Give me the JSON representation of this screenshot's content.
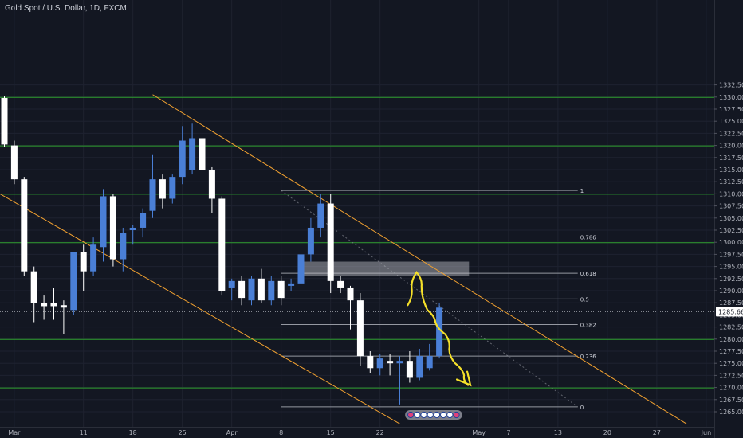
{
  "header": {
    "title": "Gold Spot / U.S. Dollar, 1D, FXCM"
  },
  "colors": {
    "background": "#131722",
    "bull": "#4a7fd6",
    "bear": "#ffffff",
    "support_line": "#2e9e2e",
    "channel": "#f0a030",
    "projection": "#f5e02a",
    "fib_line": "#9598a1",
    "zone": "#c0c3ca"
  },
  "chart_data": {
    "type": "candlestick",
    "title": "Gold Spot / U.S. Dollar, 1D, FXCM",
    "ylim": [
      1263.5,
      1333.5
    ],
    "y_ticks": [
      "1332.50",
      "1330.00",
      "1327.50",
      "1325.00",
      "1322.50",
      "1320.00",
      "1317.50",
      "1315.00",
      "1312.50",
      "1310.00",
      "1307.50",
      "1305.00",
      "1302.50",
      "1300.00",
      "1297.50",
      "1295.00",
      "1292.50",
      "1290.00",
      "1287.50",
      "1285.00",
      "1282.50",
      "1280.00",
      "1277.50",
      "1275.00",
      "1272.50",
      "1270.00",
      "1267.50",
      "1265.00"
    ],
    "x_ticks": [
      {
        "label": "Mar",
        "index": 1
      },
      {
        "label": "11",
        "index": 8
      },
      {
        "label": "18",
        "index": 13
      },
      {
        "label": "25",
        "index": 18
      },
      {
        "label": "Apr",
        "index": 23
      },
      {
        "label": "8",
        "index": 28
      },
      {
        "label": "15",
        "index": 33
      },
      {
        "label": "22",
        "index": 38
      },
      {
        "label": "May",
        "index": 48
      },
      {
        "label": "7",
        "index": 51
      },
      {
        "label": "13",
        "index": 56
      },
      {
        "label": "20",
        "index": 61
      },
      {
        "label": "27",
        "index": 66
      },
      {
        "label": "Jun",
        "index": 71
      }
    ],
    "candles": [
      {
        "o": 1329.8,
        "h": 1330.2,
        "l": 1319.6,
        "c": 1320.2
      },
      {
        "o": 1320.0,
        "h": 1321.0,
        "l": 1312.0,
        "c": 1313.0
      },
      {
        "o": 1313.0,
        "h": 1313.5,
        "l": 1293.0,
        "c": 1294.0
      },
      {
        "o": 1294.0,
        "h": 1295.0,
        "l": 1283.5,
        "c": 1287.5
      },
      {
        "o": 1287.5,
        "h": 1289.0,
        "l": 1284.0,
        "c": 1286.8
      },
      {
        "o": 1287.5,
        "h": 1290.5,
        "l": 1284.0,
        "c": 1286.8
      },
      {
        "o": 1287.0,
        "h": 1288.0,
        "l": 1281.0,
        "c": 1286.5
      },
      {
        "o": 1286.0,
        "h": 1298.0,
        "l": 1285.0,
        "c": 1298.0
      },
      {
        "o": 1298.0,
        "h": 1299.5,
        "l": 1290.0,
        "c": 1294.0
      },
      {
        "o": 1294.0,
        "h": 1301.0,
        "l": 1293.0,
        "c": 1299.5
      },
      {
        "o": 1299.0,
        "h": 1311.0,
        "l": 1296.0,
        "c": 1309.5
      },
      {
        "o": 1309.5,
        "h": 1310.0,
        "l": 1295.0,
        "c": 1296.5
      },
      {
        "o": 1296.5,
        "h": 1303.0,
        "l": 1294.0,
        "c": 1302.0
      },
      {
        "o": 1302.5,
        "h": 1303.5,
        "l": 1299.5,
        "c": 1303.0
      },
      {
        "o": 1303.0,
        "h": 1307.0,
        "l": 1301.0,
        "c": 1306.0
      },
      {
        "o": 1306.5,
        "h": 1318.0,
        "l": 1305.0,
        "c": 1313.0
      },
      {
        "o": 1313.0,
        "h": 1314.0,
        "l": 1307.0,
        "c": 1309.0
      },
      {
        "o": 1309.0,
        "h": 1314.0,
        "l": 1308.0,
        "c": 1313.5
      },
      {
        "o": 1313.5,
        "h": 1324.0,
        "l": 1312.0,
        "c": 1321.0
      },
      {
        "o": 1315.0,
        "h": 1324.5,
        "l": 1314.0,
        "c": 1321.5
      },
      {
        "o": 1321.5,
        "h": 1322.0,
        "l": 1314.0,
        "c": 1315.0
      },
      {
        "o": 1315.0,
        "h": 1315.5,
        "l": 1306.0,
        "c": 1309.0
      },
      {
        "o": 1309.0,
        "h": 1309.5,
        "l": 1289.0,
        "c": 1290.0
      },
      {
        "o": 1290.5,
        "h": 1292.5,
        "l": 1288.0,
        "c": 1292.0
      },
      {
        "o": 1292.0,
        "h": 1293.0,
        "l": 1287.0,
        "c": 1288.5
      },
      {
        "o": 1288.0,
        "h": 1293.0,
        "l": 1287.0,
        "c": 1292.5
      },
      {
        "o": 1292.5,
        "h": 1294.5,
        "l": 1287.5,
        "c": 1288.0
      },
      {
        "o": 1288.0,
        "h": 1293.0,
        "l": 1287.0,
        "c": 1292.0
      },
      {
        "o": 1292.0,
        "h": 1293.0,
        "l": 1287.0,
        "c": 1288.5
      },
      {
        "o": 1291.0,
        "h": 1292.5,
        "l": 1290.0,
        "c": 1291.5
      },
      {
        "o": 1291.5,
        "h": 1298.0,
        "l": 1291.0,
        "c": 1297.5
      },
      {
        "o": 1297.5,
        "h": 1305.0,
        "l": 1296.0,
        "c": 1303.0
      },
      {
        "o": 1303.0,
        "h": 1310.0,
        "l": 1301.0,
        "c": 1308.0
      },
      {
        "o": 1308.0,
        "h": 1310.0,
        "l": 1289.5,
        "c": 1292.0
      },
      {
        "o": 1292.0,
        "h": 1293.0,
        "l": 1289.5,
        "c": 1290.5
      },
      {
        "o": 1290.5,
        "h": 1291.0,
        "l": 1282.0,
        "c": 1288.0
      },
      {
        "o": 1288.0,
        "h": 1289.5,
        "l": 1274.5,
        "c": 1276.5
      },
      {
        "o": 1276.5,
        "h": 1277.5,
        "l": 1273.0,
        "c": 1274.0
      },
      {
        "o": 1274.0,
        "h": 1277.0,
        "l": 1272.5,
        "c": 1276.0
      },
      {
        "o": 1275.5,
        "h": 1277.0,
        "l": 1272.5,
        "c": 1275.0
      },
      {
        "o": 1275.0,
        "h": 1276.5,
        "l": 1266.5,
        "c": 1275.5
      },
      {
        "o": 1275.5,
        "h": 1277.5,
        "l": 1271.0,
        "c": 1272.0
      },
      {
        "o": 1272.0,
        "h": 1278.0,
        "l": 1271.5,
        "c": 1276.5
      },
      {
        "o": 1274.0,
        "h": 1279.0,
        "l": 1273.5,
        "c": 1276.5
      },
      {
        "o": 1276.5,
        "h": 1287.5,
        "l": 1276.0,
        "c": 1286.5
      }
    ],
    "horizontal_levels": [
      1330.0,
      1320.0,
      1310.0,
      1300.0,
      1290.0,
      1280.0,
      1270.0
    ],
    "current_price": {
      "value": 1285.66,
      "label": "1285.66"
    },
    "fibonacci": {
      "from_index": 28,
      "to_index": 58,
      "levels": [
        {
          "label": "1",
          "price": 1310.7
        },
        {
          "label": "0.786",
          "price": 1301.1
        },
        {
          "label": "0.618",
          "price": 1293.6
        },
        {
          "label": "0.5",
          "price": 1288.3
        },
        {
          "label": "0.382",
          "price": 1283.0
        },
        {
          "label": "0.236",
          "price": 1276.5
        },
        {
          "label": "0",
          "price": 1266.0
        }
      ]
    },
    "resistance_zone": {
      "from_index": 30,
      "to_index": 47,
      "top": 1296.0,
      "bottom": 1293.0
    },
    "channel_upper": {
      "x1": 15,
      "y1": 1330.5,
      "x2": 69,
      "y2": 1262.5
    },
    "channel_lower": {
      "x1": -3,
      "y1": 1313.0,
      "x2": 40,
      "y2": 1262.5
    },
    "projection_path": [
      [
        40.8,
        1287.0
      ],
      [
        41.2,
        1290.5
      ],
      [
        41.7,
        1293.8
      ],
      [
        42.2,
        1291.0
      ],
      [
        42.8,
        1286.0
      ],
      [
        43.6,
        1283.5
      ],
      [
        44.6,
        1281.0
      ],
      [
        45.0,
        1278.0
      ],
      [
        45.6,
        1275.0
      ],
      [
        46.5,
        1272.5
      ],
      [
        46.9,
        1270.5
      ]
    ]
  }
}
